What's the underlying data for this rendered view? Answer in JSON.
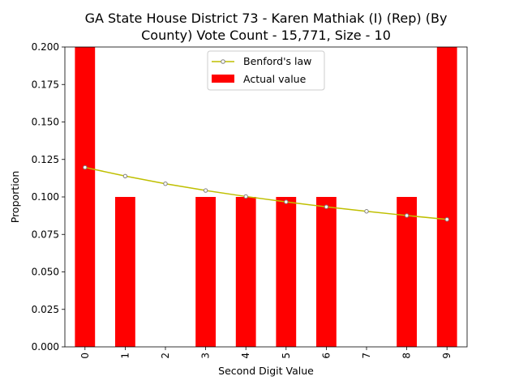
{
  "chart_data": {
    "type": "bar",
    "title_line1": "GA State House District 73 - Karen Mathiak (I) (Rep) (By",
    "title_line2": "County) Vote Count - 15,771, Size - 10",
    "xlabel": "Second Digit Value",
    "ylabel": "Proportion",
    "categories": [
      "0",
      "1",
      "2",
      "3",
      "4",
      "5",
      "6",
      "7",
      "8",
      "9"
    ],
    "ylim": [
      0,
      0.2
    ],
    "yticks": [
      "0.000",
      "0.025",
      "0.050",
      "0.075",
      "0.100",
      "0.125",
      "0.150",
      "0.175",
      "0.200"
    ],
    "grid": false,
    "legend_position": "top-center",
    "series": [
      {
        "name": "Actual value",
        "kind": "bar",
        "color": "#ff0000",
        "values": [
          0.2,
          0.1,
          0.0,
          0.1,
          0.1,
          0.1,
          0.1,
          0.0,
          0.1,
          0.2
        ]
      },
      {
        "name": "Benford's law",
        "kind": "line",
        "color": "#bfbf00",
        "values": [
          0.1197,
          0.1139,
          0.1088,
          0.1043,
          0.1003,
          0.0967,
          0.0934,
          0.0904,
          0.0876,
          0.085
        ]
      }
    ]
  }
}
